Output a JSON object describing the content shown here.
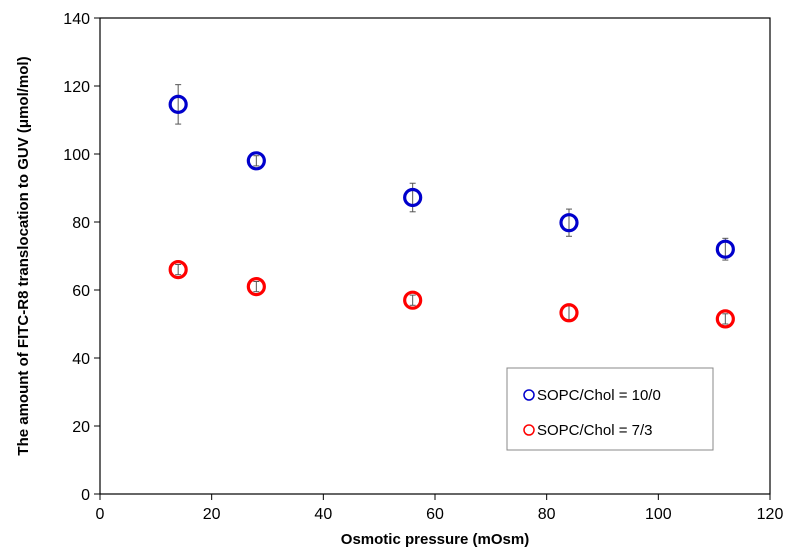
{
  "chart_data": {
    "type": "scatter",
    "xlabel": "Osmotic pressure (mOsm)",
    "ylabel": "The amount of FITC-R8 translocation to GUV (μmol/mol)",
    "xlim": [
      0,
      120
    ],
    "ylim": [
      0,
      140
    ],
    "xticks": [
      "0",
      "20",
      "40",
      "60",
      "80",
      "100",
      "120"
    ],
    "yticks": [
      "0",
      "20",
      "40",
      "60",
      "80",
      "100",
      "120",
      "140"
    ],
    "grid": false,
    "legend_position": "bottom-right",
    "series": [
      {
        "name": "SOPC/Chol = 10/0",
        "color": "#0000cc",
        "marker": "open-circle",
        "points": [
          {
            "x": 14,
            "y": 114.6,
            "err": 5.8
          },
          {
            "x": 28,
            "y": 98.0,
            "err": 1.5
          },
          {
            "x": 56,
            "y": 87.2,
            "err": 4.2
          },
          {
            "x": 84,
            "y": 79.8,
            "err": 4.0
          },
          {
            "x": 112,
            "y": 72.0,
            "err": 3.2
          }
        ]
      },
      {
        "name": "SOPC/Chol = 7/3",
        "color": "#ff0000",
        "marker": "open-circle",
        "points": [
          {
            "x": 14,
            "y": 66.0,
            "err": 1.5
          },
          {
            "x": 28,
            "y": 61.0,
            "err": 1.5
          },
          {
            "x": 56,
            "y": 57.0,
            "err": 1.5
          },
          {
            "x": 84,
            "y": 53.3,
            "err": 2.0
          },
          {
            "x": 112,
            "y": 51.5,
            "err": 1.5
          }
        ]
      }
    ]
  }
}
